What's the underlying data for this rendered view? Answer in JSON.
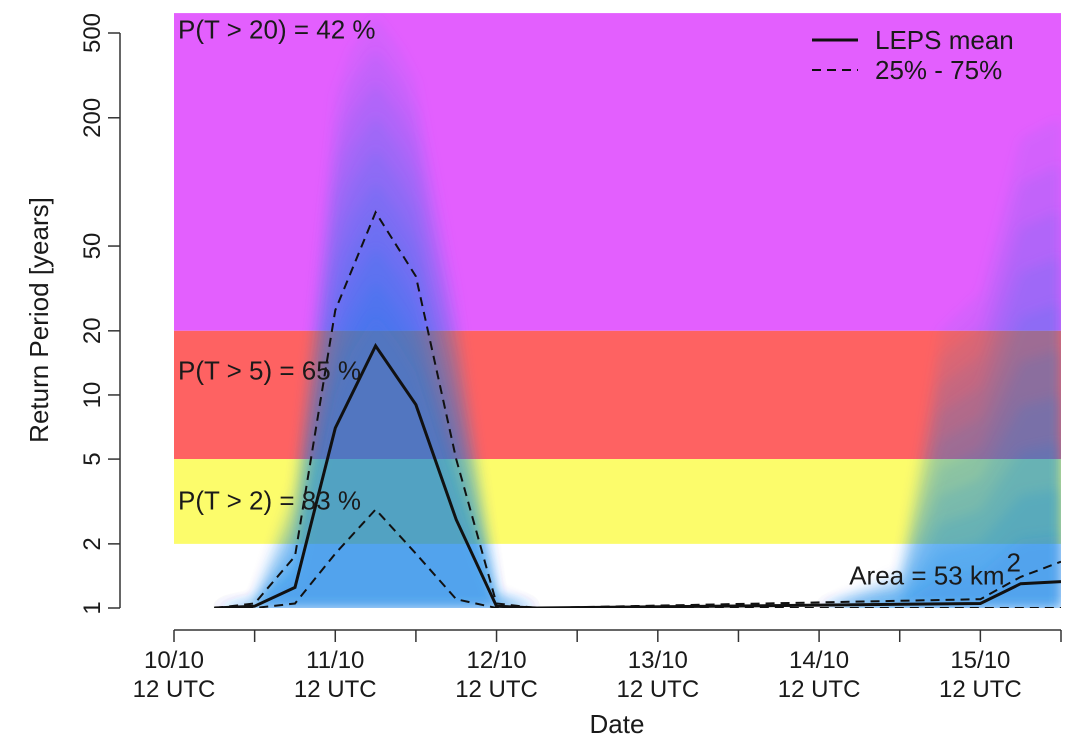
{
  "chart_data": {
    "type": "area",
    "xlabel": "Date",
    "ylabel": "Return Period [years]",
    "x": [
      "10/10 12 UTC",
      "",
      "11/10 12 UTC",
      "",
      "12/10 12 UTC",
      "",
      "13/10 12 UTC",
      "",
      "14/10 12 UTC",
      "",
      "15/10 12 UTC",
      ""
    ],
    "x_ticks": [
      {
        "line1": "10/10",
        "line2": "12 UTC"
      },
      {
        "line1": "11/10",
        "line2": "12 UTC"
      },
      {
        "line1": "12/10",
        "line2": "12 UTC"
      },
      {
        "line1": "13/10",
        "line2": "12 UTC"
      },
      {
        "line1": "14/10",
        "line2": "12 UTC"
      },
      {
        "line1": "15/10",
        "line2": "12 UTC"
      }
    ],
    "y_scale": "log",
    "ylim": [
      1,
      620
    ],
    "y_ticks": [
      1,
      2,
      5,
      10,
      20,
      50,
      200,
      500
    ],
    "bands": [
      {
        "from": 20,
        "to": 620,
        "color": "#e35ffe",
        "label": "P(T > 20) = 42 %",
        "label_y": 520
      },
      {
        "from": 5,
        "to": 20,
        "color": "#fe6262",
        "label": "P(T > 5) = 65 %",
        "label_y": 13
      },
      {
        "from": 2,
        "to": 5,
        "color": "#fcfc6b",
        "label": "P(T > 2) = 83 %",
        "label_y": 3.2
      }
    ],
    "series": [
      {
        "name": "LEPS mean",
        "style": "solid",
        "x": [
          0.25,
          0.5,
          0.75,
          1.0,
          1.25,
          1.5,
          1.75,
          2.0,
          2.25,
          5.0,
          5.25,
          5.5
        ],
        "values": [
          1.0,
          1.02,
          1.25,
          7.0,
          17.0,
          9.0,
          2.6,
          1.02,
          1.0,
          1.05,
          1.3,
          1.33
        ]
      },
      {
        "name": "25% - 75%",
        "style": "dashed",
        "x": [
          0.25,
          0.5,
          0.75,
          1.0,
          1.25,
          1.5,
          1.75,
          2.0,
          2.25,
          5.0,
          5.25,
          5.5
        ],
        "values": [
          1.0,
          1.05,
          1.75,
          25.0,
          72.0,
          36.0,
          5.0,
          1.05,
          1.0,
          1.1,
          1.4,
          1.65
        ]
      },
      {
        "name": "",
        "style": "dashed",
        "x": [
          0.25,
          0.5,
          0.75,
          1.0,
          1.25,
          1.5,
          1.75,
          2.0,
          2.25,
          5.0,
          5.25,
          5.5
        ],
        "values": [
          1.0,
          1.0,
          1.05,
          1.8,
          2.9,
          1.8,
          1.1,
          1.0,
          1.0,
          1.0,
          1.0,
          1.0
        ]
      }
    ],
    "ensemble_spread": {
      "color": "#1d7fe6",
      "x": [
        0.25,
        0.5,
        0.75,
        1.0,
        1.1,
        1.25,
        1.4,
        1.5,
        1.75,
        2.0,
        2.25,
        2.9,
        3.5,
        4.0,
        4.5,
        4.75,
        5.0,
        5.25,
        5.5
      ],
      "upper": [
        1.0,
        1.1,
        4.0,
        260,
        420,
        600,
        420,
        300,
        30,
        1.2,
        1.0,
        1.0,
        1.0,
        1.0,
        1.5,
        20,
        30,
        160,
        200
      ],
      "mean": [
        1.0,
        1.02,
        1.25,
        7.0,
        11,
        17.0,
        12,
        9.0,
        2.6,
        1.02,
        1.0,
        1.0,
        1.0,
        1.0,
        1.0,
        1.02,
        1.05,
        1.3,
        1.33
      ]
    },
    "legend": {
      "position": "top-right",
      "entries": [
        "LEPS mean",
        "25% - 75%"
      ]
    },
    "annotation": {
      "text": "Area = 53 km",
      "superscript": "2",
      "x": 5.15,
      "y": 1.42
    }
  }
}
